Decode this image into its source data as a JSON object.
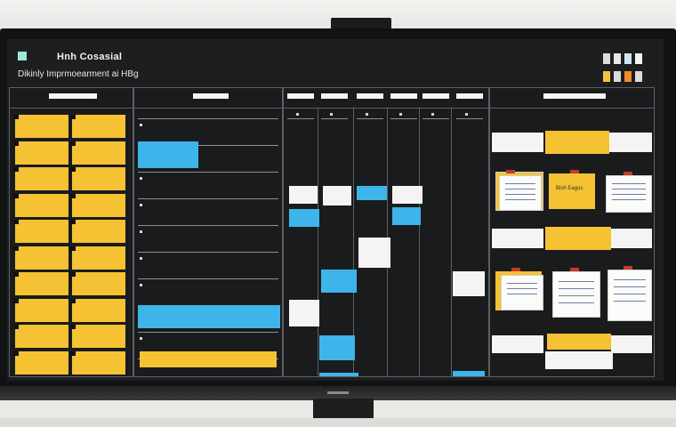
{
  "board": {
    "title": "Hnh Cosasial",
    "subtitle": "Dikinly Imprmoearment ai HBg"
  },
  "colors": {
    "board_bg": "#1d1e20",
    "sticky_yellow": "#f4c233",
    "sticky_blue": "#3db5ea",
    "sticky_white": "#f4f4f2",
    "clip_red": "#c63a25",
    "swatches": [
      "#dcdcdc",
      "#e9e9e9",
      "#cfe6f2",
      "#f4f4f4",
      "#f3c63a",
      "#dcdcdc",
      "#f08a2a",
      "#dcdcdc"
    ]
  },
  "panels": {
    "doc_label": "Bish Eagus"
  },
  "icons": {
    "camera": "webcam-icon",
    "title_chip": "board-marker-icon"
  }
}
